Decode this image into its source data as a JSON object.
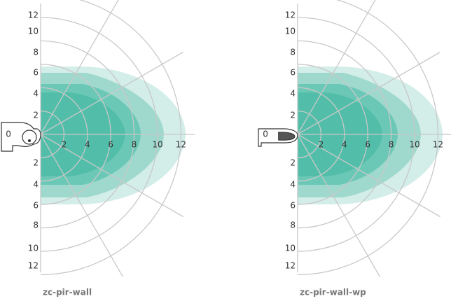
{
  "diagrams": [
    {
      "caption": "zc-pir-wall",
      "origin_label": "0",
      "x_labels": [
        "2",
        "4",
        "6",
        "8",
        "10",
        "12"
      ],
      "y_labels_upper": [
        "2",
        "4",
        "6",
        "8",
        "10",
        "12"
      ],
      "y_labels_lower": [
        "2",
        "4",
        "6",
        "8",
        "10",
        "12"
      ]
    },
    {
      "caption": "zc-pir-wall-wp",
      "origin_label": "0",
      "x_labels": [
        "2",
        "4",
        "6",
        "8",
        "10",
        "12"
      ],
      "y_labels_upper": [
        "2",
        "4",
        "6",
        "8",
        "10",
        "12"
      ],
      "y_labels_lower": [
        "2",
        "4",
        "6",
        "8",
        "10",
        "12"
      ]
    }
  ]
}
